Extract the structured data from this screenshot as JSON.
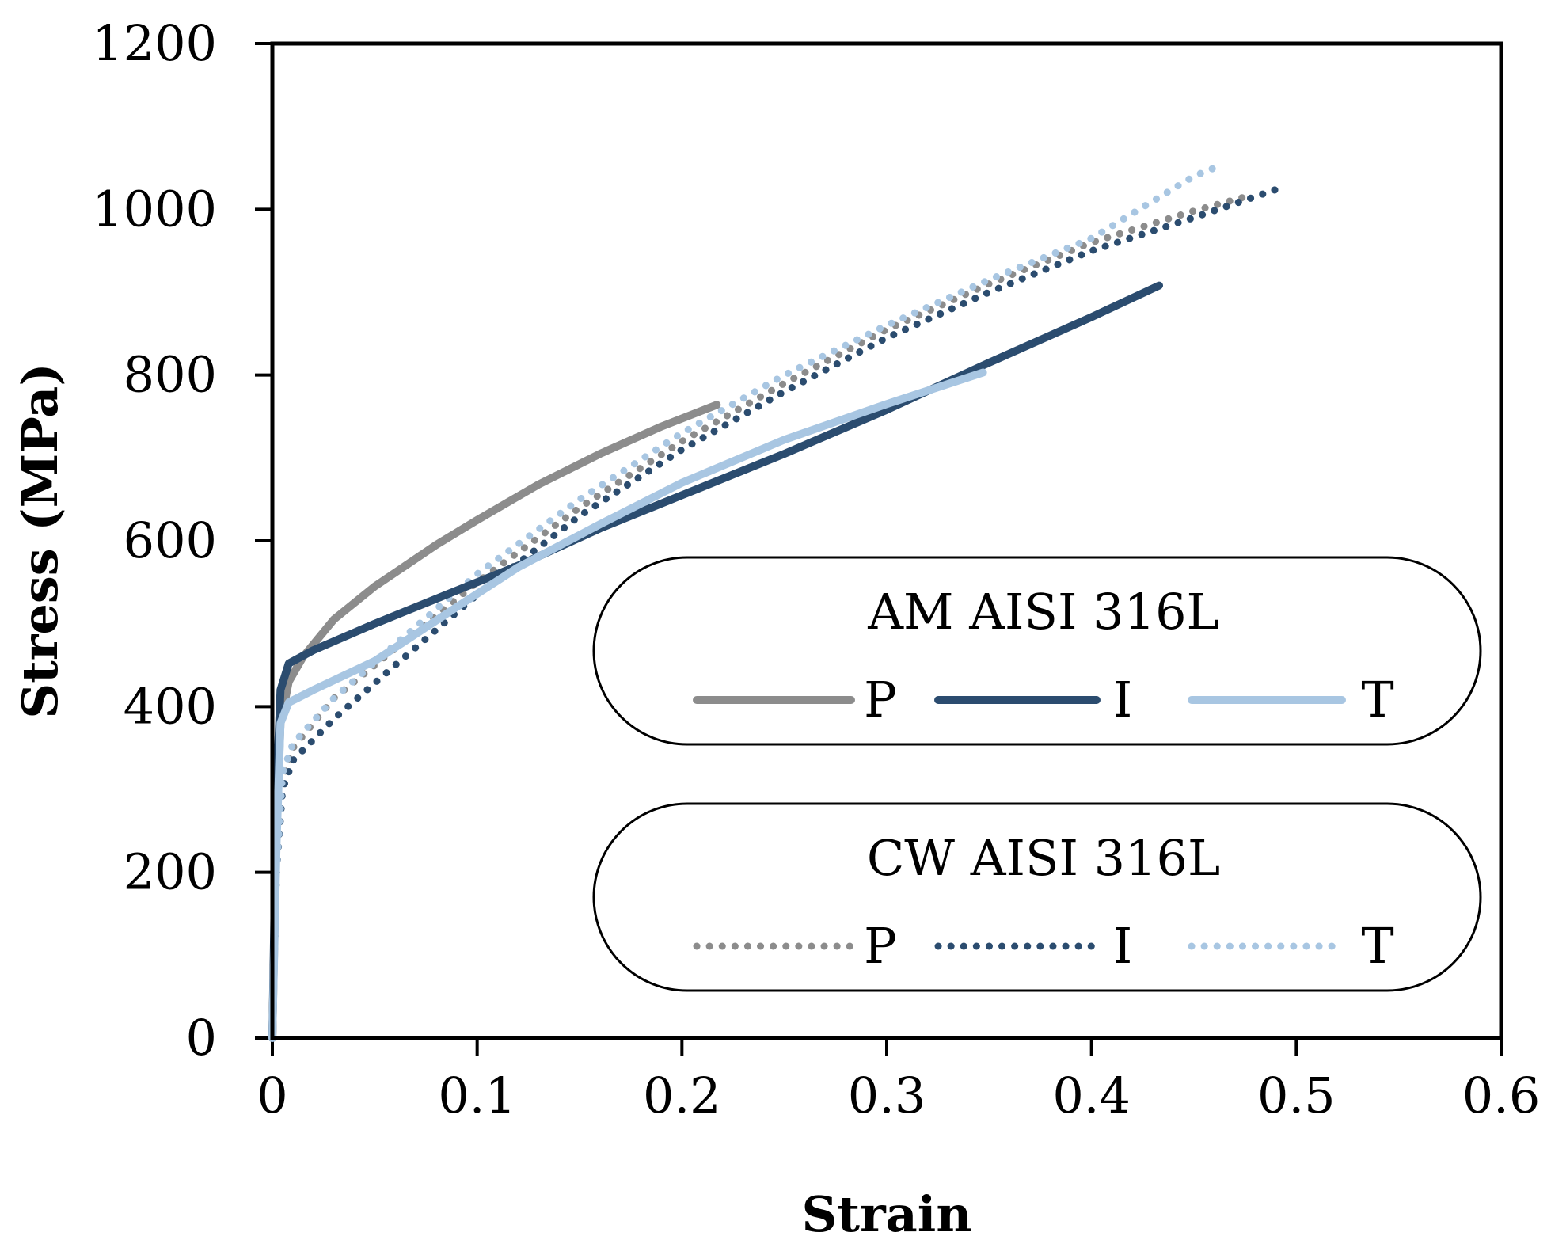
{
  "chart_data": {
    "type": "line",
    "title": "",
    "xlabel": "Strain",
    "ylabel": "Stress (MPa)",
    "xlim": [
      0,
      0.6
    ],
    "ylim": [
      0,
      1200
    ],
    "xticks": [
      "0",
      "0.1",
      "0.2",
      "0.3",
      "0.4",
      "0.5",
      "0.6"
    ],
    "yticks": [
      "0",
      "200",
      "400",
      "600",
      "800",
      "1000",
      "1200"
    ],
    "grid": false,
    "legend_groups": [
      {
        "title": "AM AISI 316L",
        "style": "solid",
        "entries": [
          {
            "label": "P",
            "color": "#8c8c8c"
          },
          {
            "label": "I",
            "color": "#2b4c6f"
          },
          {
            "label": "T",
            "color": "#a8c6e2"
          }
        ]
      },
      {
        "title": "CW AISI 316L",
        "style": "dotted",
        "entries": [
          {
            "label": "P",
            "color": "#8c8c8c"
          },
          {
            "label": "I",
            "color": "#2b4c6f"
          },
          {
            "label": "T",
            "color": "#a8c6e2"
          }
        ]
      }
    ],
    "series": [
      {
        "name": "AM AISI 316L P",
        "style": "solid",
        "color": "#8c8c8c",
        "x": [
          0,
          0.002,
          0.004,
          0.008,
          0.015,
          0.03,
          0.05,
          0.08,
          0.1,
          0.13,
          0.16,
          0.19,
          0.217
        ],
        "y": [
          0,
          250,
          380,
          430,
          460,
          505,
          545,
          595,
          625,
          668,
          705,
          738,
          764
        ]
      },
      {
        "name": "AM AISI 316L I",
        "style": "solid",
        "color": "#2b4c6f",
        "x": [
          0,
          0.002,
          0.004,
          0.008,
          0.02,
          0.05,
          0.09,
          0.12,
          0.16,
          0.2,
          0.25,
          0.3,
          0.35,
          0.4,
          0.433
        ],
        "y": [
          0,
          300,
          420,
          452,
          468,
          500,
          540,
          570,
          615,
          655,
          705,
          758,
          815,
          870,
          908
        ]
      },
      {
        "name": "AM AISI 316L T",
        "style": "solid",
        "color": "#a8c6e2",
        "x": [
          0,
          0.002,
          0.004,
          0.008,
          0.02,
          0.05,
          0.09,
          0.12,
          0.16,
          0.2,
          0.25,
          0.3,
          0.347
        ],
        "y": [
          0,
          230,
          380,
          405,
          420,
          455,
          520,
          568,
          620,
          670,
          722,
          765,
          803
        ]
      },
      {
        "name": "CW AISI 316L P",
        "style": "dotted",
        "color": "#8c8c8c",
        "x": [
          0,
          0.002,
          0.005,
          0.01,
          0.03,
          0.06,
          0.1,
          0.15,
          0.2,
          0.25,
          0.3,
          0.35,
          0.4,
          0.45,
          0.475
        ],
        "y": [
          0,
          200,
          310,
          350,
          410,
          470,
          550,
          640,
          720,
          790,
          855,
          910,
          960,
          998,
          1015
        ]
      },
      {
        "name": "CW AISI 316L I",
        "style": "dotted",
        "color": "#2b4c6f",
        "x": [
          0,
          0.002,
          0.005,
          0.01,
          0.03,
          0.06,
          0.1,
          0.15,
          0.2,
          0.25,
          0.3,
          0.35,
          0.4,
          0.45,
          0.495
        ],
        "y": [
          0,
          200,
          300,
          335,
          385,
          450,
          535,
          630,
          710,
          780,
          845,
          900,
          950,
          990,
          1028
        ]
      },
      {
        "name": "CW AISI 316L T",
        "style": "dotted",
        "color": "#a8c6e2",
        "x": [
          0,
          0.002,
          0.005,
          0.01,
          0.03,
          0.06,
          0.1,
          0.15,
          0.2,
          0.25,
          0.3,
          0.35,
          0.4,
          0.45,
          0.46
        ],
        "y": [
          0,
          200,
          320,
          355,
          410,
          475,
          560,
          650,
          730,
          800,
          860,
          915,
          965,
          1040,
          1050
        ]
      }
    ]
  }
}
